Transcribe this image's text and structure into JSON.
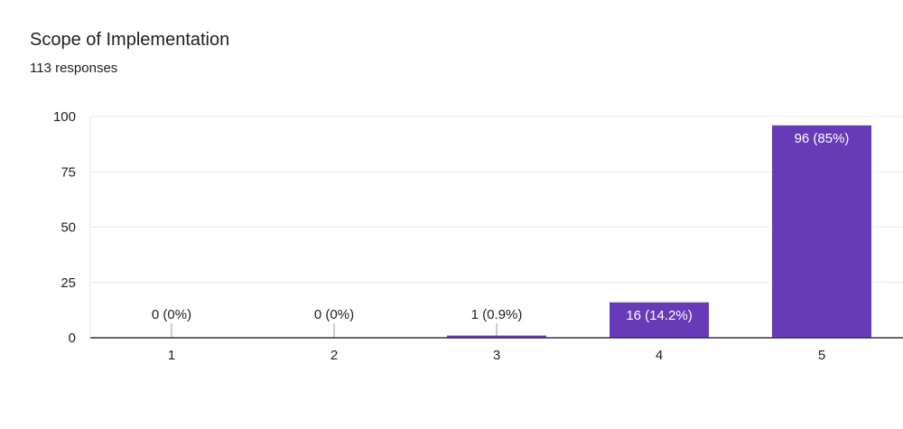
{
  "header": {
    "title": "Scope of Implementation",
    "subtitle": "113 responses"
  },
  "colors": {
    "bar": "#673ab7",
    "grid": "#e8e8e8",
    "axis": "#333333",
    "text": "#202124",
    "label_on_bar": "#ffffff"
  },
  "chart_data": {
    "type": "bar",
    "title": "Scope of Implementation",
    "subtitle": "113 responses",
    "categories": [
      "1",
      "2",
      "3",
      "4",
      "5"
    ],
    "values": [
      0,
      0,
      1,
      16,
      96
    ],
    "data_labels": [
      "0 (0%)",
      "0 (0%)",
      "1 (0.9%)",
      "16 (14.2%)",
      "96 (85%)"
    ],
    "yticks": [
      0,
      25,
      50,
      75,
      100
    ],
    "ylim": [
      0,
      100
    ],
    "xlabel": "",
    "ylabel": "",
    "grid": true,
    "legend": "none"
  }
}
